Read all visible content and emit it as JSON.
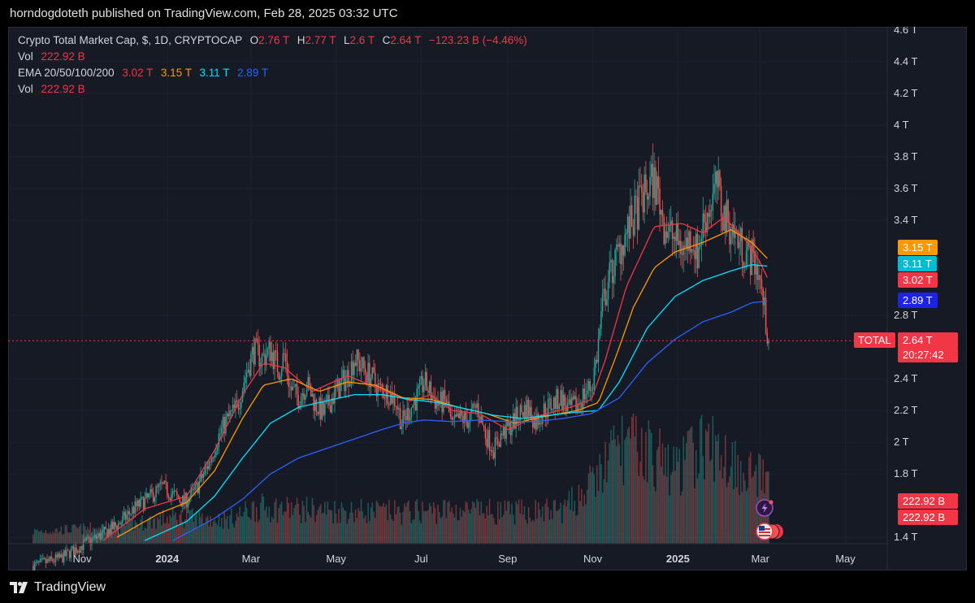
{
  "header": {
    "published_text": "horndogdoteth published on TradingView.com, Feb 28, 2025 03:32 UTC"
  },
  "legend": {
    "title": "Crypto Total Market Cap, $, 1D, CRYPTOCAP",
    "ohlc": {
      "o_label": "O",
      "o": "2.76 T",
      "h_label": "H",
      "h": "2.77 T",
      "l_label": "L",
      "l": "2.6 T",
      "c_label": "C",
      "c": "2.64 T",
      "change": "−123.23 B (−4.46%)"
    },
    "vol_label": "Vol",
    "vol": "222.92 B",
    "ema_label": "EMA 20/50/100/200",
    "ema20": "3.02 T",
    "ema50": "3.15 T",
    "ema100": "3.11 T",
    "ema200": "2.89 T",
    "vol2_label": "Vol",
    "vol2": "222.92 B"
  },
  "badges": {
    "ema50": "3.15 T",
    "ema100": "3.11 T",
    "ema20": "3.02 T",
    "ema200": "2.89 T",
    "symbol": "TOTAL",
    "price": "2.64 T",
    "countdown": "20:27:42",
    "vol1": "222.92 B",
    "vol2": "222.92 B"
  },
  "colors": {
    "up": "#26a69a",
    "down": "#ef5350",
    "ema20": "#f23645",
    "ema50": "#ff9800",
    "ema100": "#00e5ff",
    "ema200": "#2962ff",
    "background": "#161a25"
  },
  "footer": {
    "brand": "TradingView",
    "logo_icon": "tradingview-logo-icon"
  },
  "chart_data": {
    "type": "candlestick",
    "title": "Crypto Total Market Cap, $, 1D, CRYPTOCAP",
    "y_unit": "T",
    "ylim": [
      1.36,
      4.62
    ],
    "y_ticks": [
      1.4,
      1.8,
      2,
      2.2,
      2.4,
      2.8,
      3.4,
      3.6,
      3.8,
      4,
      4.2,
      4.4,
      4.6
    ],
    "y_tick_labels": [
      "1.4 T",
      "1.8 T",
      "2 T",
      "2.2 T",
      "2.4 T",
      "2.8 T",
      "3.4 T",
      "3.6 T",
      "3.8 T",
      "4 T",
      "4.2 T",
      "4.4 T",
      "4.6 T"
    ],
    "x_labels": [
      "Nov",
      "2024",
      "Mar",
      "May",
      "Jul",
      "Sep",
      "Nov",
      "2025",
      "Mar",
      "May"
    ],
    "x_label_days": [
      35,
      96,
      156,
      217,
      278,
      340,
      401,
      462,
      521,
      582
    ],
    "x_range_days": [
      -18,
      612
    ],
    "close_series_T": [
      [
        0,
        1.22
      ],
      [
        20,
        1.27
      ],
      [
        35,
        1.35
      ],
      [
        50,
        1.42
      ],
      [
        62,
        1.49
      ],
      [
        72,
        1.58
      ],
      [
        82,
        1.64
      ],
      [
        92,
        1.72
      ],
      [
        100,
        1.67
      ],
      [
        108,
        1.62
      ],
      [
        115,
        1.68
      ],
      [
        120,
        1.76
      ],
      [
        126,
        1.87
      ],
      [
        132,
        2.02
      ],
      [
        138,
        2.13
      ],
      [
        146,
        2.22
      ],
      [
        152,
        2.42
      ],
      [
        158,
        2.58
      ],
      [
        164,
        2.53
      ],
      [
        170,
        2.58
      ],
      [
        176,
        2.46
      ],
      [
        180,
        2.55
      ],
      [
        184,
        2.34
      ],
      [
        190,
        2.28
      ],
      [
        196,
        2.37
      ],
      [
        202,
        2.24
      ],
      [
        208,
        2.18
      ],
      [
        214,
        2.28
      ],
      [
        220,
        2.36
      ],
      [
        226,
        2.43
      ],
      [
        230,
        2.53
      ],
      [
        236,
        2.47
      ],
      [
        242,
        2.41
      ],
      [
        248,
        2.33
      ],
      [
        254,
        2.32
      ],
      [
        260,
        2.26
      ],
      [
        264,
        2.12
      ],
      [
        270,
        2.21
      ],
      [
        276,
        2.3
      ],
      [
        280,
        2.38
      ],
      [
        284,
        2.32
      ],
      [
        290,
        2.24
      ],
      [
        296,
        2.26
      ],
      [
        300,
        2.1
      ],
      [
        306,
        2.15
      ],
      [
        312,
        2.14
      ],
      [
        318,
        2.23
      ],
      [
        324,
        2.05
      ],
      [
        330,
        1.96
      ],
      [
        336,
        2.05
      ],
      [
        342,
        2.1
      ],
      [
        348,
        2.18
      ],
      [
        354,
        2.22
      ],
      [
        360,
        2.13
      ],
      [
        366,
        2.2
      ],
      [
        372,
        2.24
      ],
      [
        378,
        2.28
      ],
      [
        384,
        2.2
      ],
      [
        390,
        2.24
      ],
      [
        396,
        2.32
      ],
      [
        400,
        2.35
      ],
      [
        404,
        2.55
      ],
      [
        408,
        2.86
      ],
      [
        412,
        3.02
      ],
      [
        418,
        3.16
      ],
      [
        424,
        3.3
      ],
      [
        430,
        3.4
      ],
      [
        435,
        3.52
      ],
      [
        440,
        3.58
      ],
      [
        444,
        3.66
      ],
      [
        448,
        3.56
      ],
      [
        452,
        3.38
      ],
      [
        456,
        3.32
      ],
      [
        460,
        3.28
      ],
      [
        466,
        3.22
      ],
      [
        472,
        3.3
      ],
      [
        476,
        3.18
      ],
      [
        480,
        3.38
      ],
      [
        486,
        3.52
      ],
      [
        490,
        3.62
      ],
      [
        494,
        3.44
      ],
      [
        500,
        3.36
      ],
      [
        506,
        3.26
      ],
      [
        512,
        3.18
      ],
      [
        516,
        3.16
      ],
      [
        520,
        3.07
      ],
      [
        522,
        2.94
      ],
      [
        524,
        2.82
      ],
      [
        527,
        2.64
      ]
    ],
    "ema20_T": [
      [
        50,
        1.38
      ],
      [
        80,
        1.58
      ],
      [
        110,
        1.66
      ],
      [
        130,
        1.95
      ],
      [
        150,
        2.3
      ],
      [
        165,
        2.5
      ],
      [
        180,
        2.47
      ],
      [
        200,
        2.32
      ],
      [
        225,
        2.42
      ],
      [
        250,
        2.33
      ],
      [
        270,
        2.26
      ],
      [
        285,
        2.3
      ],
      [
        300,
        2.2
      ],
      [
        320,
        2.18
      ],
      [
        340,
        2.08
      ],
      [
        360,
        2.16
      ],
      [
        385,
        2.22
      ],
      [
        400,
        2.27
      ],
      [
        410,
        2.52
      ],
      [
        425,
        2.98
      ],
      [
        445,
        3.36
      ],
      [
        465,
        3.38
      ],
      [
        480,
        3.32
      ],
      [
        495,
        3.42
      ],
      [
        510,
        3.28
      ],
      [
        520,
        3.15
      ],
      [
        527,
        3.02
      ]
    ],
    "ema50_T": [
      [
        60,
        1.4
      ],
      [
        90,
        1.55
      ],
      [
        110,
        1.62
      ],
      [
        130,
        1.82
      ],
      [
        150,
        2.15
      ],
      [
        165,
        2.36
      ],
      [
        185,
        2.4
      ],
      [
        205,
        2.32
      ],
      [
        225,
        2.38
      ],
      [
        245,
        2.36
      ],
      [
        265,
        2.28
      ],
      [
        285,
        2.27
      ],
      [
        305,
        2.22
      ],
      [
        325,
        2.18
      ],
      [
        345,
        2.12
      ],
      [
        365,
        2.16
      ],
      [
        390,
        2.2
      ],
      [
        405,
        2.25
      ],
      [
        418,
        2.55
      ],
      [
        430,
        2.85
      ],
      [
        445,
        3.1
      ],
      [
        460,
        3.2
      ],
      [
        480,
        3.26
      ],
      [
        500,
        3.34
      ],
      [
        515,
        3.26
      ],
      [
        527,
        3.15
      ]
    ],
    "ema100_T": [
      [
        80,
        1.38
      ],
      [
        110,
        1.5
      ],
      [
        130,
        1.66
      ],
      [
        150,
        1.9
      ],
      [
        170,
        2.12
      ],
      [
        190,
        2.22
      ],
      [
        210,
        2.26
      ],
      [
        230,
        2.3
      ],
      [
        250,
        2.3
      ],
      [
        270,
        2.27
      ],
      [
        290,
        2.25
      ],
      [
        310,
        2.21
      ],
      [
        330,
        2.17
      ],
      [
        350,
        2.15
      ],
      [
        370,
        2.17
      ],
      [
        390,
        2.19
      ],
      [
        405,
        2.2
      ],
      [
        420,
        2.38
      ],
      [
        440,
        2.72
      ],
      [
        460,
        2.92
      ],
      [
        480,
        3.02
      ],
      [
        500,
        3.08
      ],
      [
        515,
        3.12
      ],
      [
        527,
        3.11
      ]
    ],
    "ema200_T": [
      [
        100,
        1.38
      ],
      [
        130,
        1.52
      ],
      [
        150,
        1.64
      ],
      [
        170,
        1.8
      ],
      [
        190,
        1.9
      ],
      [
        210,
        1.96
      ],
      [
        230,
        2.02
      ],
      [
        250,
        2.08
      ],
      [
        265,
        2.12
      ],
      [
        280,
        2.14
      ],
      [
        300,
        2.13
      ],
      [
        320,
        2.14
      ],
      [
        340,
        2.13
      ],
      [
        360,
        2.13
      ],
      [
        380,
        2.15
      ],
      [
        400,
        2.18
      ],
      [
        420,
        2.28
      ],
      [
        440,
        2.5
      ],
      [
        460,
        2.65
      ],
      [
        480,
        2.76
      ],
      [
        500,
        2.82
      ],
      [
        515,
        2.88
      ],
      [
        527,
        2.89
      ]
    ],
    "volume_shape": [
      [
        0,
        0.1
      ],
      [
        60,
        0.14
      ],
      [
        100,
        0.22
      ],
      [
        140,
        0.2
      ],
      [
        160,
        0.3
      ],
      [
        200,
        0.28
      ],
      [
        260,
        0.26
      ],
      [
        300,
        0.28
      ],
      [
        340,
        0.26
      ],
      [
        380,
        0.28
      ],
      [
        400,
        0.48
      ],
      [
        420,
        0.82
      ],
      [
        440,
        0.78
      ],
      [
        460,
        0.6
      ],
      [
        480,
        0.82
      ],
      [
        500,
        0.7
      ],
      [
        520,
        0.55
      ],
      [
        527,
        0.5
      ]
    ],
    "last_close": "2.64 T",
    "last_volume": "222.92 B"
  }
}
